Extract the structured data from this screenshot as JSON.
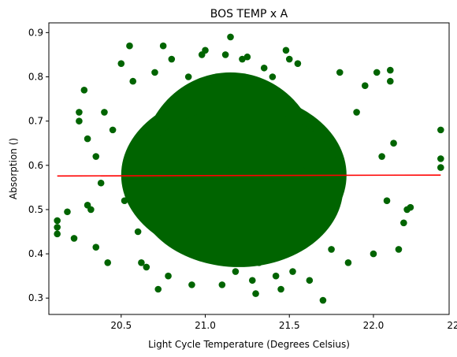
{
  "chart_data": {
    "type": "scatter",
    "title": "BOS TEMP x A",
    "xlabel": "Light Cycle Temperature (Degrees Celsius)",
    "ylabel": "Absorption ()",
    "xlim": [
      20.07,
      22.45
    ],
    "ylim": [
      0.263,
      0.922
    ],
    "xticks": [
      "20.5",
      "21.0",
      "21.5",
      "22.0",
      "22.5"
    ],
    "yticks": [
      "0.3",
      "0.4",
      "0.5",
      "0.6",
      "0.7",
      "0.8",
      "0.9"
    ],
    "grid": false,
    "colors": {
      "points": "#006400",
      "trend": "#ff0000"
    },
    "series": [
      {
        "kind": "points",
        "x": [
          20.12,
          20.12,
          20.12,
          20.18,
          20.22,
          20.25,
          20.25,
          20.28,
          20.3,
          20.3,
          20.32,
          20.35,
          20.35,
          20.38,
          20.4,
          20.42,
          20.45,
          20.5,
          20.52,
          20.55,
          20.57,
          20.6,
          20.62,
          20.65,
          20.7,
          20.72,
          20.75,
          20.78,
          20.8,
          20.85,
          20.9,
          20.92,
          20.95,
          20.98,
          21.0,
          21.02,
          21.05,
          21.1,
          21.12,
          21.15,
          21.18,
          21.2,
          21.22,
          21.25,
          21.28,
          21.3,
          21.32,
          21.35,
          21.4,
          21.42,
          21.45,
          21.48,
          21.5,
          21.52,
          21.55,
          21.6,
          21.62,
          21.65,
          21.7,
          21.75,
          21.8,
          21.85,
          21.9,
          21.95,
          22.0,
          22.02,
          22.05,
          22.08,
          22.1,
          22.1,
          22.12,
          22.15,
          22.18,
          22.2,
          22.22,
          22.4,
          22.4,
          22.4,
          21.0,
          21.2,
          21.1,
          20.9,
          21.3,
          20.8,
          21.4,
          21.05,
          21.25,
          20.95,
          21.35,
          21.15
        ],
        "y": [
          0.475,
          0.46,
          0.445,
          0.495,
          0.435,
          0.7,
          0.72,
          0.77,
          0.51,
          0.66,
          0.5,
          0.415,
          0.62,
          0.56,
          0.72,
          0.38,
          0.68,
          0.83,
          0.52,
          0.87,
          0.79,
          0.45,
          0.38,
          0.37,
          0.81,
          0.32,
          0.87,
          0.35,
          0.84,
          0.76,
          0.8,
          0.33,
          0.78,
          0.85,
          0.86,
          0.79,
          0.4,
          0.33,
          0.85,
          0.89,
          0.36,
          0.8,
          0.84,
          0.845,
          0.34,
          0.31,
          0.38,
          0.82,
          0.8,
          0.35,
          0.32,
          0.86,
          0.84,
          0.36,
          0.83,
          0.6,
          0.34,
          0.44,
          0.295,
          0.41,
          0.81,
          0.38,
          0.72,
          0.78,
          0.4,
          0.81,
          0.62,
          0.52,
          0.79,
          0.815,
          0.65,
          0.41,
          0.47,
          0.5,
          0.505,
          0.68,
          0.615,
          0.595,
          0.6,
          0.58,
          0.55,
          0.65,
          0.5,
          0.62,
          0.57,
          0.7,
          0.45,
          0.53,
          0.64,
          0.6
        ]
      },
      {
        "kind": "trend",
        "x": [
          20.12,
          22.4
        ],
        "y": [
          0.576,
          0.578
        ]
      }
    ]
  }
}
